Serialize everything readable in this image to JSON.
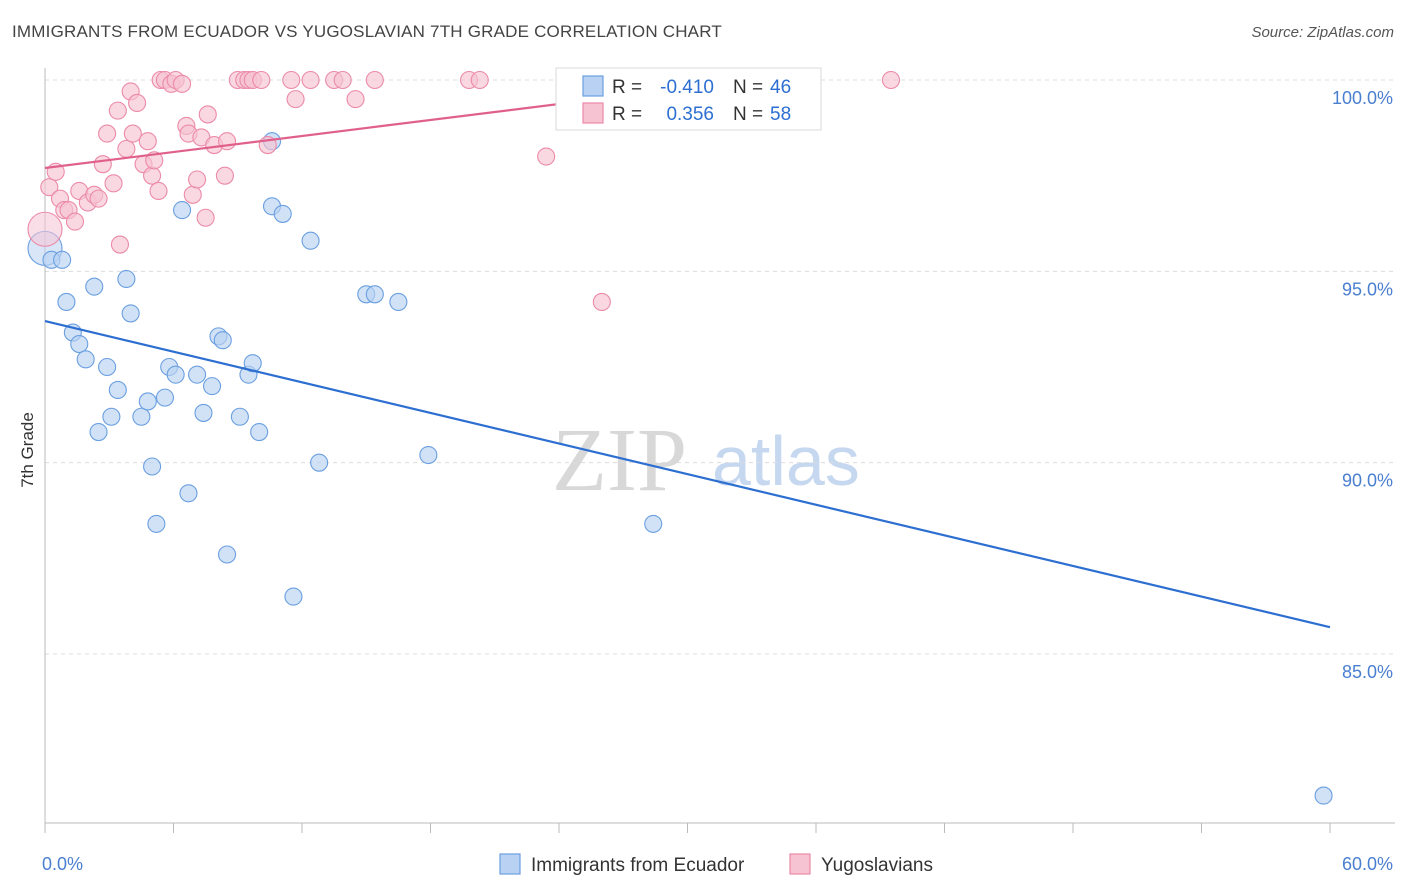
{
  "header": {
    "title": "IMMIGRANTS FROM ECUADOR VS YUGOSLAVIAN 7TH GRADE CORRELATION CHART",
    "source": "Source: ZipAtlas.com"
  },
  "watermark": {
    "zip": "ZIP",
    "atlas": "atlas"
  },
  "colors": {
    "blue": "#6a9fe0",
    "blue_fill": "#b9d2f3",
    "blue_line": "#2c6fd1",
    "pink": "#ec8aa8",
    "pink_fill": "#f6c3d3",
    "pink_line": "#e0608c",
    "grid": "#dcdcdc",
    "value_text": "#2c6fd1"
  },
  "stats_legend": [
    {
      "r_label": "R =",
      "r_value": "-0.410",
      "n_label": "N =",
      "n_value": "46",
      "color": "blue"
    },
    {
      "r_label": "R =",
      "r_value": "0.356",
      "n_label": "N =",
      "n_value": "58",
      "color": "pink"
    }
  ],
  "chart_data": {
    "type": "scatter",
    "title": "IMMIGRANTS FROM ECUADOR VS YUGOSLAVIAN 7TH GRADE CORRELATION CHART",
    "xlabel": "",
    "ylabel": "7th Grade",
    "xlim": [
      0,
      60
    ],
    "ylim": [
      80.5,
      100.5
    ],
    "x_tick_labels": [
      "0.0%",
      "60.0%"
    ],
    "y_ticks": [
      85,
      90,
      95,
      100
    ],
    "y_tick_labels": [
      "85.0%",
      "90.0%",
      "95.0%",
      "100.0%"
    ],
    "grid": true,
    "legend_position": "bottom",
    "series": [
      {
        "name": "Immigrants from Ecuador",
        "color": "blue",
        "trend": {
          "x": [
            0,
            60
          ],
          "y": [
            93.7,
            85.7
          ]
        },
        "points": [
          [
            0.0,
            95.6
          ],
          [
            0.3,
            95.3
          ],
          [
            0.8,
            95.3
          ],
          [
            1.0,
            94.2
          ],
          [
            1.3,
            93.4
          ],
          [
            1.6,
            93.1
          ],
          [
            1.9,
            92.7
          ],
          [
            2.3,
            94.6
          ],
          [
            2.9,
            92.5
          ],
          [
            3.4,
            91.9
          ],
          [
            3.8,
            94.8
          ],
          [
            4.0,
            93.9
          ],
          [
            3.1,
            91.2
          ],
          [
            2.5,
            90.8
          ],
          [
            4.5,
            91.2
          ],
          [
            4.8,
            91.6
          ],
          [
            5.6,
            91.7
          ],
          [
            5.8,
            92.5
          ],
          [
            6.1,
            92.3
          ],
          [
            6.4,
            96.6
          ],
          [
            7.1,
            92.3
          ],
          [
            7.4,
            91.3
          ],
          [
            7.8,
            92.0
          ],
          [
            8.1,
            93.3
          ],
          [
            8.3,
            93.2
          ],
          [
            9.1,
            91.2
          ],
          [
            9.5,
            92.3
          ],
          [
            9.7,
            92.6
          ],
          [
            10.0,
            90.8
          ],
          [
            10.6,
            96.7
          ],
          [
            10.6,
            98.4
          ],
          [
            11.1,
            96.5
          ],
          [
            12.4,
            95.8
          ],
          [
            15.0,
            94.4
          ],
          [
            15.4,
            94.4
          ],
          [
            16.5,
            94.2
          ],
          [
            5.0,
            89.9
          ],
          [
            5.2,
            88.4
          ],
          [
            6.7,
            89.2
          ],
          [
            8.5,
            87.6
          ],
          [
            11.6,
            86.5
          ],
          [
            12.8,
            90.0
          ],
          [
            17.9,
            90.2
          ],
          [
            28.4,
            88.4
          ],
          [
            26.6,
            99.6
          ],
          [
            59.7,
            81.3
          ]
        ]
      },
      {
        "name": "Yugoslavians",
        "color": "pink",
        "trend": {
          "x": [
            0,
            33
          ],
          "y": [
            97.7,
            100.0
          ]
        },
        "points": [
          [
            0.0,
            96.1
          ],
          [
            0.2,
            97.2
          ],
          [
            0.5,
            97.6
          ],
          [
            0.7,
            96.9
          ],
          [
            0.9,
            96.6
          ],
          [
            1.1,
            96.6
          ],
          [
            1.4,
            96.3
          ],
          [
            1.6,
            97.1
          ],
          [
            2.0,
            96.8
          ],
          [
            2.3,
            97.0
          ],
          [
            2.5,
            96.9
          ],
          [
            2.7,
            97.8
          ],
          [
            2.9,
            98.6
          ],
          [
            3.2,
            97.3
          ],
          [
            3.4,
            99.2
          ],
          [
            3.5,
            95.7
          ],
          [
            3.8,
            98.2
          ],
          [
            4.0,
            99.7
          ],
          [
            4.1,
            98.6
          ],
          [
            4.3,
            99.4
          ],
          [
            4.6,
            97.8
          ],
          [
            4.8,
            98.4
          ],
          [
            5.0,
            97.5
          ],
          [
            5.1,
            97.9
          ],
          [
            5.3,
            97.1
          ],
          [
            5.4,
            100.0
          ],
          [
            5.6,
            100.0
          ],
          [
            5.9,
            99.9
          ],
          [
            6.1,
            100.0
          ],
          [
            6.4,
            99.9
          ],
          [
            6.6,
            98.8
          ],
          [
            6.7,
            98.6
          ],
          [
            6.9,
            97.0
          ],
          [
            7.1,
            97.4
          ],
          [
            7.3,
            98.5
          ],
          [
            7.5,
            96.4
          ],
          [
            7.6,
            99.1
          ],
          [
            7.9,
            98.3
          ],
          [
            8.4,
            97.5
          ],
          [
            8.5,
            98.4
          ],
          [
            9.0,
            100.0
          ],
          [
            9.3,
            100.0
          ],
          [
            9.5,
            100.0
          ],
          [
            9.7,
            100.0
          ],
          [
            10.1,
            100.0
          ],
          [
            10.4,
            98.3
          ],
          [
            11.5,
            100.0
          ],
          [
            11.7,
            99.5
          ],
          [
            12.4,
            100.0
          ],
          [
            13.5,
            100.0
          ],
          [
            13.9,
            100.0
          ],
          [
            14.5,
            99.5
          ],
          [
            15.4,
            100.0
          ],
          [
            19.8,
            100.0
          ],
          [
            20.3,
            100.0
          ],
          [
            23.4,
            98.0
          ],
          [
            26.0,
            94.2
          ],
          [
            39.5,
            100.0
          ]
        ]
      }
    ]
  }
}
